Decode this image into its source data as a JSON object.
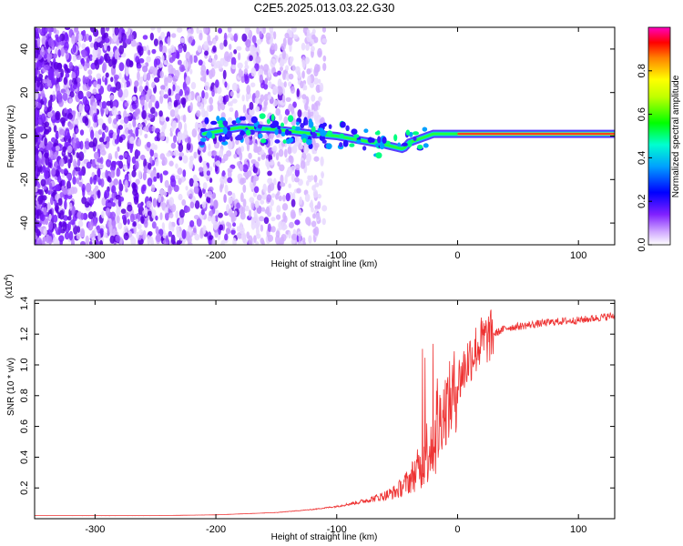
{
  "title": "C2E5.2025.013.03.22.G30",
  "chart_data": [
    {
      "type": "heatmap",
      "title": "C2E5.2025.013.03.22.G30",
      "xlabel": "Height of straight line (km)",
      "ylabel": "Frequency (Hz)",
      "xlim": [
        -350,
        130
      ],
      "ylim": [
        -50,
        50
      ],
      "xticks": [
        -300,
        -200,
        -100,
        0,
        100
      ],
      "yticks": [
        -40,
        -20,
        0,
        20,
        40
      ],
      "colorbar": {
        "label": "Normalized spectral amplitude",
        "range": [
          0,
          1
        ],
        "ticks": [
          "0.0",
          "0.2",
          "0.4",
          "0.6",
          "0.8"
        ],
        "colors": [
          "#ffffff",
          "#c080ff",
          "#6000ff",
          "#0000ff",
          "#00c0ff",
          "#00ff40",
          "#ffff00",
          "#ff8000",
          "#ff0000",
          "#ff00c0"
        ]
      },
      "ridge": {
        "description": "dominant frequency vs height",
        "x": [
          -210,
          -180,
          -150,
          -120,
          -100,
          -80,
          -60,
          -45,
          -40,
          -30,
          -20,
          0,
          50,
          100,
          130
        ],
        "y": [
          1,
          4,
          3,
          1,
          0,
          -2,
          -4,
          -6,
          -3,
          -1,
          1,
          1,
          1,
          1,
          1
        ]
      }
    },
    {
      "type": "line",
      "xlabel": "Height of straight line (km)",
      "ylabel": "SNR (10 * v/v)",
      "multiplier_label": "(x10",
      "multiplier_exp": "4",
      "multiplier_close": ")",
      "xlim": [
        -350,
        130
      ],
      "ylim": [
        0,
        1.42
      ],
      "xticks": [
        -300,
        -200,
        -100,
        0,
        100
      ],
      "yticks": [
        "0.2",
        "0.4",
        "0.6",
        "0.8",
        "1.0",
        "1.2",
        "1.4"
      ],
      "color": "#ee3333",
      "series": [
        {
          "name": "SNR",
          "x": [
            -350,
            -250,
            -200,
            -150,
            -120,
            -100,
            -80,
            -60,
            -50,
            -40,
            -30,
            -25,
            -20,
            -15,
            -10,
            -5,
            0,
            10,
            20,
            30,
            40,
            60,
            80,
            100,
            120,
            130
          ],
          "y": [
            0.02,
            0.02,
            0.025,
            0.04,
            0.06,
            0.08,
            0.11,
            0.15,
            0.18,
            0.25,
            0.35,
            0.45,
            0.55,
            0.65,
            0.72,
            0.78,
            0.88,
            1.05,
            1.15,
            1.2,
            1.24,
            1.26,
            1.28,
            1.29,
            1.31,
            1.32
          ]
        }
      ]
    }
  ]
}
